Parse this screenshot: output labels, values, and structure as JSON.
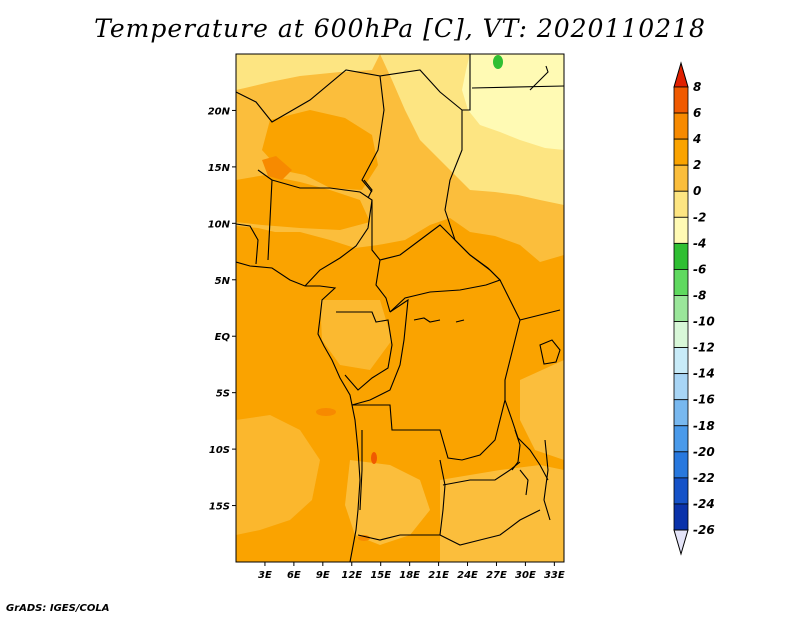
{
  "title": "Temperature at 600hPa [C], VT: 2020110218",
  "credit": "GrADS: IGES/COLA",
  "map": {
    "lon_range": [
      0,
      34
    ],
    "lat_range": [
      -20,
      25
    ],
    "lon_ticks": [
      "3E",
      "6E",
      "9E",
      "12E",
      "15E",
      "18E",
      "21E",
      "24E",
      "27E",
      "30E",
      "33E"
    ],
    "lat_ticks": [
      "20N",
      "15N",
      "10N",
      "5N",
      "EQ",
      "5S",
      "10S",
      "15S"
    ]
  },
  "colorbar": {
    "labels": [
      "8",
      "6",
      "4",
      "2",
      "0",
      "-2",
      "-4",
      "-6",
      "-8",
      "-10",
      "-12",
      "-14",
      "-16",
      "-18",
      "-20",
      "-22",
      "-24",
      "-26"
    ],
    "colors": [
      "#e02000",
      "#f05a00",
      "#f78a00",
      "#faa300",
      "#fbbe3c",
      "#fde582",
      "#fffab4",
      "#2fbf32",
      "#5fd95f",
      "#9ae69a",
      "#d8f7d8",
      "#c8ebf8",
      "#a8d5f5",
      "#78b8ef",
      "#4a9aea",
      "#2878de",
      "#1552c8",
      "#0a32aa",
      "#0a1a70"
    ],
    "top_color": "#e02000",
    "bottom_color": "#e4e4f8"
  }
}
